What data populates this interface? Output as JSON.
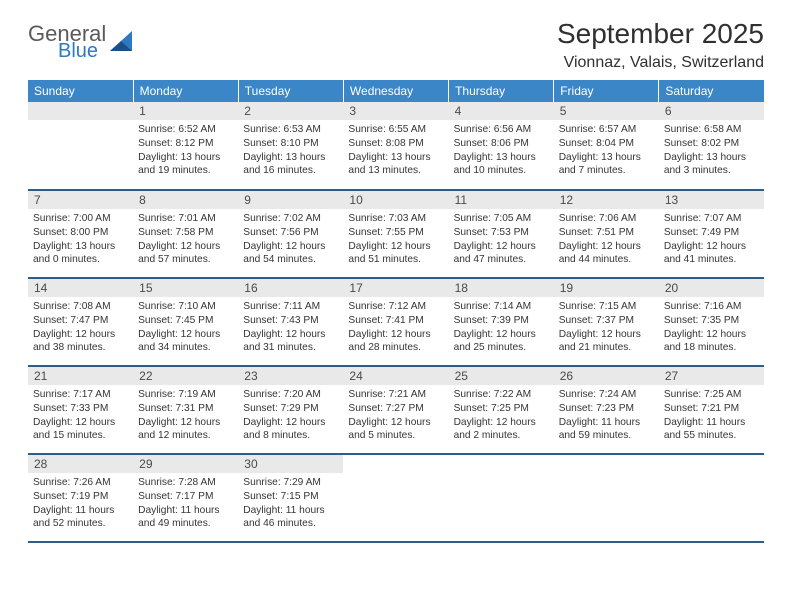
{
  "brand": {
    "line1": "General",
    "line2": "Blue"
  },
  "title": "September 2025",
  "location": "Vionnaz, Valais, Switzerland",
  "colors": {
    "header_bg": "#3b86c7",
    "header_text": "#ffffff",
    "daynum_bg": "#e9e9e9",
    "row_border": "#2f5d86",
    "brand_gray": "#5a5a5a",
    "brand_blue": "#2f78c4",
    "body_text": "#353535",
    "page_bg": "#ffffff"
  },
  "dayHeaders": [
    "Sunday",
    "Monday",
    "Tuesday",
    "Wednesday",
    "Thursday",
    "Friday",
    "Saturday"
  ],
  "grid": [
    [
      null,
      {
        "n": "1",
        "sr": "6:52 AM",
        "ss": "8:12 PM",
        "dl": "13 hours and 19 minutes."
      },
      {
        "n": "2",
        "sr": "6:53 AM",
        "ss": "8:10 PM",
        "dl": "13 hours and 16 minutes."
      },
      {
        "n": "3",
        "sr": "6:55 AM",
        "ss": "8:08 PM",
        "dl": "13 hours and 13 minutes."
      },
      {
        "n": "4",
        "sr": "6:56 AM",
        "ss": "8:06 PM",
        "dl": "13 hours and 10 minutes."
      },
      {
        "n": "5",
        "sr": "6:57 AM",
        "ss": "8:04 PM",
        "dl": "13 hours and 7 minutes."
      },
      {
        "n": "6",
        "sr": "6:58 AM",
        "ss": "8:02 PM",
        "dl": "13 hours and 3 minutes."
      }
    ],
    [
      {
        "n": "7",
        "sr": "7:00 AM",
        "ss": "8:00 PM",
        "dl": "13 hours and 0 minutes."
      },
      {
        "n": "8",
        "sr": "7:01 AM",
        "ss": "7:58 PM",
        "dl": "12 hours and 57 minutes."
      },
      {
        "n": "9",
        "sr": "7:02 AM",
        "ss": "7:56 PM",
        "dl": "12 hours and 54 minutes."
      },
      {
        "n": "10",
        "sr": "7:03 AM",
        "ss": "7:55 PM",
        "dl": "12 hours and 51 minutes."
      },
      {
        "n": "11",
        "sr": "7:05 AM",
        "ss": "7:53 PM",
        "dl": "12 hours and 47 minutes."
      },
      {
        "n": "12",
        "sr": "7:06 AM",
        "ss": "7:51 PM",
        "dl": "12 hours and 44 minutes."
      },
      {
        "n": "13",
        "sr": "7:07 AM",
        "ss": "7:49 PM",
        "dl": "12 hours and 41 minutes."
      }
    ],
    [
      {
        "n": "14",
        "sr": "7:08 AM",
        "ss": "7:47 PM",
        "dl": "12 hours and 38 minutes."
      },
      {
        "n": "15",
        "sr": "7:10 AM",
        "ss": "7:45 PM",
        "dl": "12 hours and 34 minutes."
      },
      {
        "n": "16",
        "sr": "7:11 AM",
        "ss": "7:43 PM",
        "dl": "12 hours and 31 minutes."
      },
      {
        "n": "17",
        "sr": "7:12 AM",
        "ss": "7:41 PM",
        "dl": "12 hours and 28 minutes."
      },
      {
        "n": "18",
        "sr": "7:14 AM",
        "ss": "7:39 PM",
        "dl": "12 hours and 25 minutes."
      },
      {
        "n": "19",
        "sr": "7:15 AM",
        "ss": "7:37 PM",
        "dl": "12 hours and 21 minutes."
      },
      {
        "n": "20",
        "sr": "7:16 AM",
        "ss": "7:35 PM",
        "dl": "12 hours and 18 minutes."
      }
    ],
    [
      {
        "n": "21",
        "sr": "7:17 AM",
        "ss": "7:33 PM",
        "dl": "12 hours and 15 minutes."
      },
      {
        "n": "22",
        "sr": "7:19 AM",
        "ss": "7:31 PM",
        "dl": "12 hours and 12 minutes."
      },
      {
        "n": "23",
        "sr": "7:20 AM",
        "ss": "7:29 PM",
        "dl": "12 hours and 8 minutes."
      },
      {
        "n": "24",
        "sr": "7:21 AM",
        "ss": "7:27 PM",
        "dl": "12 hours and 5 minutes."
      },
      {
        "n": "25",
        "sr": "7:22 AM",
        "ss": "7:25 PM",
        "dl": "12 hours and 2 minutes."
      },
      {
        "n": "26",
        "sr": "7:24 AM",
        "ss": "7:23 PM",
        "dl": "11 hours and 59 minutes."
      },
      {
        "n": "27",
        "sr": "7:25 AM",
        "ss": "7:21 PM",
        "dl": "11 hours and 55 minutes."
      }
    ],
    [
      {
        "n": "28",
        "sr": "7:26 AM",
        "ss": "7:19 PM",
        "dl": "11 hours and 52 minutes."
      },
      {
        "n": "29",
        "sr": "7:28 AM",
        "ss": "7:17 PM",
        "dl": "11 hours and 49 minutes."
      },
      {
        "n": "30",
        "sr": "7:29 AM",
        "ss": "7:15 PM",
        "dl": "11 hours and 46 minutes."
      },
      null,
      null,
      null,
      null
    ]
  ],
  "labels": {
    "sunrise": "Sunrise:",
    "sunset": "Sunset:",
    "daylight": "Daylight:"
  }
}
